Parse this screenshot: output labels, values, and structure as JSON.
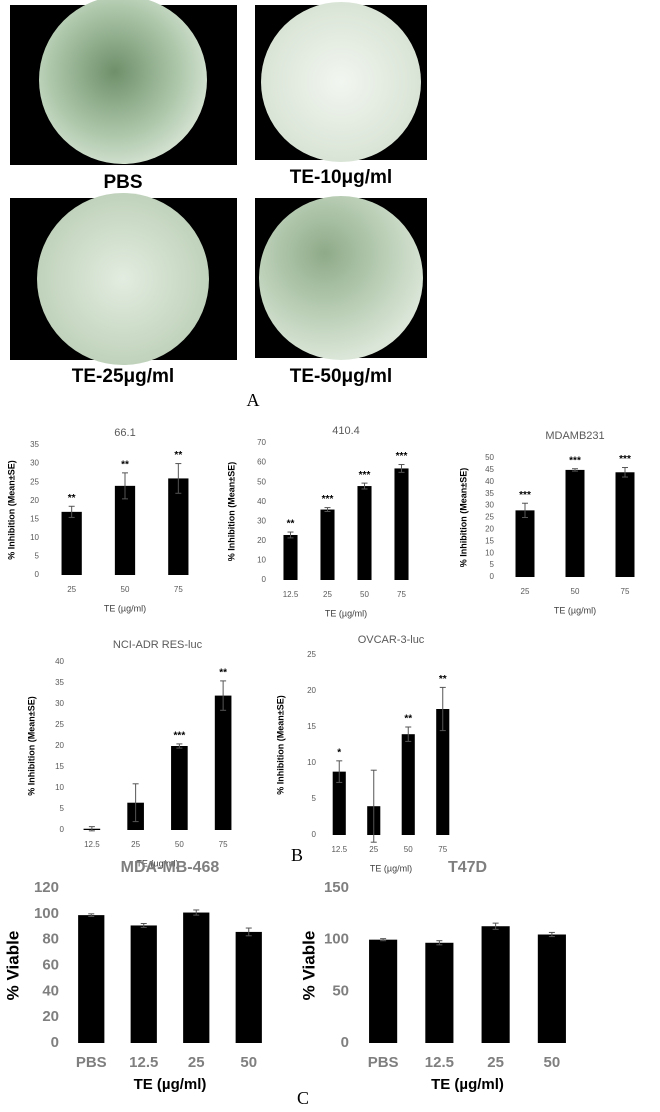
{
  "image_captions": [
    "PBS",
    "TE-10μg/ml",
    "TE-25μg/ml",
    "TE-50μg/ml"
  ],
  "panel_labels": [
    "A",
    "B",
    "C"
  ],
  "chart_data": [
    {
      "type": "bar",
      "title": "66.1",
      "x_label": "TE (µg/ml)",
      "y_label": "% Inhibition (Mean±SE)",
      "categories": [
        "25",
        "50",
        "75"
      ],
      "values": [
        17,
        24,
        26
      ],
      "errors": [
        1.5,
        3.5,
        4
      ],
      "annotations": [
        "**",
        "**",
        "**"
      ],
      "color": "#000000",
      "ylim": [
        0,
        35
      ],
      "yticks": [
        0,
        5,
        10,
        15,
        20,
        25,
        30,
        35
      ]
    },
    {
      "type": "bar",
      "title": "410.4",
      "x_label": "TE (µg/ml)",
      "y_label": "% Inhibition (Mean±SE)",
      "categories": [
        "12.5",
        "25",
        "50",
        "75"
      ],
      "values": [
        23,
        36,
        48,
        57
      ],
      "errors": [
        1.5,
        1,
        1.5,
        2
      ],
      "annotations": [
        "**",
        "***",
        "***",
        "***"
      ],
      "color": "#000000",
      "ylim": [
        0,
        70
      ],
      "yticks": [
        0,
        10,
        20,
        30,
        40,
        50,
        60,
        70
      ]
    },
    {
      "type": "bar",
      "title": "MDAMB231",
      "x_label": "TE (µg/ml)",
      "y_label": "% Inhibition (Mean±SE)",
      "categories": [
        "25",
        "50",
        "75"
      ],
      "values": [
        28,
        45,
        44
      ],
      "errors": [
        3,
        0.5,
        2
      ],
      "annotations": [
        "***",
        "***",
        "***"
      ],
      "color": "#000000",
      "ylim": [
        0,
        50
      ],
      "yticks": [
        0,
        5,
        10,
        15,
        20,
        25,
        30,
        35,
        40,
        45,
        50
      ]
    },
    {
      "type": "bar",
      "title": "NCI-ADR RES-luc",
      "x_label": "TE (µg/ml)",
      "y_label": "% Inhibition (Mean±SE)",
      "categories": [
        "12.5",
        "25",
        "50",
        "75"
      ],
      "values": [
        0.3,
        6.5,
        20,
        32
      ],
      "errors": [
        0.5,
        4.5,
        0.5,
        3.5
      ],
      "annotations": [
        null,
        null,
        "***",
        "**"
      ],
      "color": "#000000",
      "ylim": [
        0,
        40
      ],
      "yticks": [
        0,
        5,
        10,
        15,
        20,
        25,
        30,
        35,
        40
      ]
    },
    {
      "type": "bar",
      "title": "OVCAR-3-luc",
      "x_label": "TE (µg/ml)",
      "y_label": "% Inhibition (Mean±SE)",
      "categories": [
        "12.5",
        "25",
        "50",
        "75"
      ],
      "values": [
        8.8,
        4,
        14,
        17.5
      ],
      "errors": [
        1.5,
        5,
        1,
        3
      ],
      "annotations": [
        "*",
        null,
        "**",
        "**"
      ],
      "color": "#000000",
      "ylim": [
        0,
        25
      ],
      "yticks": [
        0,
        5,
        10,
        15,
        20,
        25
      ]
    },
    {
      "type": "bar",
      "title": "MDA-MB-468",
      "x_label": "TE (µg/ml)",
      "y_label": "% Viable",
      "categories": [
        "PBS",
        "12.5",
        "25",
        "50"
      ],
      "values": [
        99,
        91,
        101,
        86
      ],
      "errors": [
        1,
        1.5,
        2,
        3
      ],
      "color": "#000000",
      "ylim": [
        0,
        120
      ],
      "yticks": [
        0,
        20,
        40,
        60,
        80,
        100,
        120
      ]
    },
    {
      "type": "bar",
      "title": "T47D",
      "x_label": "TE (µg/ml)",
      "y_label": "% Viable",
      "categories": [
        "PBS",
        "12.5",
        "25",
        "50"
      ],
      "values": [
        100,
        97,
        113,
        105
      ],
      "errors": [
        1,
        2,
        3,
        2
      ],
      "color": "#000000",
      "ylim": [
        0,
        150
      ],
      "yticks": [
        0,
        50,
        100,
        150
      ]
    }
  ]
}
